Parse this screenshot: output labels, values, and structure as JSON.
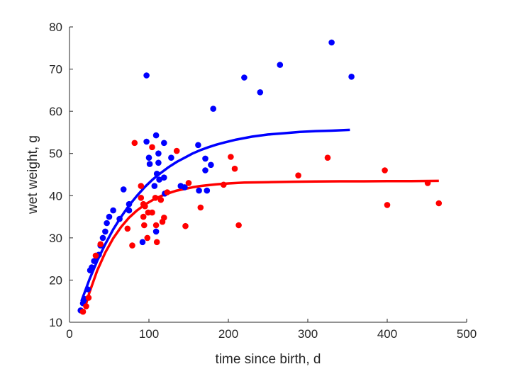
{
  "chart_data": {
    "type": "scatter",
    "title": "",
    "xlabel": "time since birth, d",
    "ylabel": "wet weight, g",
    "xlim": [
      0,
      500
    ],
    "ylim": [
      10,
      80
    ],
    "xticks": [
      0,
      100,
      200,
      300,
      400,
      500
    ],
    "yticks": [
      10,
      20,
      30,
      40,
      50,
      60,
      70,
      80
    ],
    "grid": false,
    "legend": "none",
    "series": [
      {
        "color": "#0000ff",
        "points": [
          [
            14,
            12.8
          ],
          [
            17,
            14.5
          ],
          [
            19,
            15.5
          ],
          [
            23,
            17.8
          ],
          [
            26,
            22.3
          ],
          [
            28,
            23.0
          ],
          [
            31,
            24.5
          ],
          [
            34,
            25.5
          ],
          [
            37,
            26.0
          ],
          [
            39,
            28.2
          ],
          [
            42,
            30.0
          ],
          [
            45,
            31.5
          ],
          [
            47,
            33.5
          ],
          [
            50,
            35.0
          ],
          [
            55,
            36.5
          ],
          [
            63,
            34.5
          ],
          [
            68,
            41.5
          ],
          [
            75,
            38.0
          ],
          [
            75,
            36.5
          ],
          [
            92,
            29.0
          ],
          [
            97,
            68.5
          ],
          [
            97,
            52.8
          ],
          [
            100,
            49.0
          ],
          [
            101,
            47.5
          ],
          [
            107,
            42.3
          ],
          [
            109,
            31.5
          ],
          [
            109,
            54.3
          ],
          [
            110,
            45.2
          ],
          [
            112,
            50.0
          ],
          [
            112,
            47.8
          ],
          [
            113,
            43.8
          ],
          [
            119,
            52.5
          ],
          [
            119,
            44.3
          ],
          [
            120,
            40.5
          ],
          [
            128,
            49.0
          ],
          [
            140,
            42.3
          ],
          [
            145,
            42.0
          ],
          [
            162,
            52.0
          ],
          [
            163,
            41.2
          ],
          [
            171,
            48.8
          ],
          [
            171,
            46.0
          ],
          [
            173,
            41.2
          ],
          [
            178,
            47.3
          ],
          [
            181,
            60.6
          ],
          [
            220,
            68.0
          ],
          [
            240,
            64.5
          ],
          [
            265,
            71.0
          ],
          [
            330,
            76.3
          ],
          [
            355,
            68.2
          ]
        ],
        "curve": {
          "x": [
            15,
            25,
            35,
            45,
            55,
            65,
            75,
            85,
            95,
            105,
            115,
            125,
            135,
            145,
            155,
            165,
            175,
            185,
            195,
            210,
            230,
            250,
            270,
            290,
            310,
            330,
            353
          ],
          "y": [
            15.0,
            20.1,
            24.6,
            28.5,
            32.0,
            35.0,
            37.7,
            40.0,
            42.1,
            43.9,
            45.4,
            46.8,
            48.0,
            49.0,
            50.0,
            50.8,
            51.5,
            52.1,
            52.6,
            53.3,
            54.0,
            54.5,
            54.8,
            55.1,
            55.3,
            55.4,
            55.6
          ]
        }
      },
      {
        "color": "#ff0000",
        "points": [
          [
            17,
            12.5
          ],
          [
            21,
            13.8
          ],
          [
            24,
            15.8
          ],
          [
            33,
            25.8
          ],
          [
            39,
            28.5
          ],
          [
            73,
            32.2
          ],
          [
            79,
            28.2
          ],
          [
            82,
            52.5
          ],
          [
            90,
            42.3
          ],
          [
            90,
            39.5
          ],
          [
            93,
            38.0
          ],
          [
            93,
            35.0
          ],
          [
            94,
            33.0
          ],
          [
            95,
            37.5
          ],
          [
            98,
            30.0
          ],
          [
            99,
            36.0
          ],
          [
            104,
            51.5
          ],
          [
            104,
            36.0
          ],
          [
            108,
            39.5
          ],
          [
            109,
            33.0
          ],
          [
            110,
            29.0
          ],
          [
            115,
            39.0
          ],
          [
            117,
            33.8
          ],
          [
            119,
            34.8
          ],
          [
            123,
            40.8
          ],
          [
            135,
            50.6
          ],
          [
            146,
            32.8
          ],
          [
            150,
            43.0
          ],
          [
            165,
            37.2
          ],
          [
            194,
            42.6
          ],
          [
            203,
            49.2
          ],
          [
            208,
            46.4
          ],
          [
            213,
            33.0
          ],
          [
            288,
            44.8
          ],
          [
            325,
            49.0
          ],
          [
            397,
            46.0
          ],
          [
            400,
            37.8
          ],
          [
            451,
            43.0
          ],
          [
            465,
            38.2
          ]
        ],
        "curve": {
          "x": [
            20,
            25,
            35,
            45,
            55,
            65,
            75,
            85,
            95,
            105,
            115,
            125,
            135,
            145,
            155,
            165,
            175,
            185,
            200,
            220,
            250,
            280,
            310,
            340,
            370,
            400,
            430,
            465
          ],
          "y": [
            13.8,
            17.0,
            22.3,
            26.5,
            29.9,
            32.6,
            34.8,
            36.5,
            37.9,
            39.0,
            39.9,
            40.6,
            41.2,
            41.6,
            42.0,
            42.3,
            42.5,
            42.7,
            42.9,
            43.1,
            43.2,
            43.3,
            43.35,
            43.4,
            43.4,
            43.45,
            43.45,
            43.5
          ]
        }
      }
    ]
  }
}
